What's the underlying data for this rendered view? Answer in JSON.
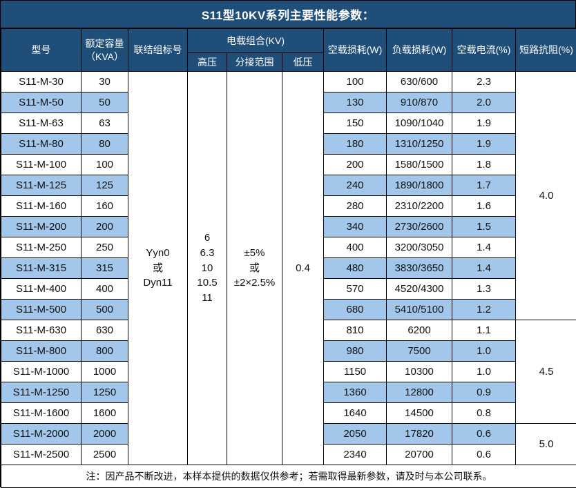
{
  "title": "S11型10KV系列主要性能参数：",
  "colors": {
    "header_blue": "#1F4E79",
    "row_alt_blue": "#A3C7EA",
    "border": "#000000",
    "header_text": "#FFFFFF",
    "body_text": "#111111"
  },
  "header": {
    "model": "型号",
    "capacity": "额定容量\n（KVA）",
    "joint": "联结组标号",
    "voltage_group": "电载组合(KV)",
    "hv": "高压",
    "tap": "分接范围",
    "lv": "低压",
    "no_load_loss": "空载损耗(W)",
    "load_loss": "负载损耗(W)",
    "no_load_current": "空载电流(%)",
    "impedance": "短路抗阻(%)"
  },
  "merged": {
    "joint": "Yyn0\n或\nDyn11",
    "hv": "6\n6.3\n10\n10.5\n11",
    "tap": "±5%\n或\n±2×2.5%",
    "lv": "0.4"
  },
  "rows": [
    {
      "model": "S11-M-30",
      "capacity": "30",
      "no_load_loss": "100",
      "load_loss": "630/600",
      "no_load_current": "2.3"
    },
    {
      "model": "S11-M-50",
      "capacity": "50",
      "no_load_loss": "130",
      "load_loss": "910/870",
      "no_load_current": "2.0"
    },
    {
      "model": "S11-M-63",
      "capacity": "63",
      "no_load_loss": "150",
      "load_loss": "1090/1040",
      "no_load_current": "1.9"
    },
    {
      "model": "S11-M-80",
      "capacity": "80",
      "no_load_loss": "180",
      "load_loss": "1310/1250",
      "no_load_current": "1.9"
    },
    {
      "model": "S11-M-100",
      "capacity": "100",
      "no_load_loss": "200",
      "load_loss": "1580/1500",
      "no_load_current": "1.8"
    },
    {
      "model": "S11-M-125",
      "capacity": "125",
      "no_load_loss": "240",
      "load_loss": "1890/1800",
      "no_load_current": "1.7"
    },
    {
      "model": "S11-M-160",
      "capacity": "160",
      "no_load_loss": "280",
      "load_loss": "2310/2200",
      "no_load_current": "1.6"
    },
    {
      "model": "S11-M-200",
      "capacity": "200",
      "no_load_loss": "340",
      "load_loss": "2730/2600",
      "no_load_current": "1.5"
    },
    {
      "model": "S11-M-250",
      "capacity": "250",
      "no_load_loss": "400",
      "load_loss": "3200/3050",
      "no_load_current": "1.4"
    },
    {
      "model": "S11-M-315",
      "capacity": "315",
      "no_load_loss": "480",
      "load_loss": "3830/3650",
      "no_load_current": "1.4"
    },
    {
      "model": "S11-M-400",
      "capacity": "400",
      "no_load_loss": "570",
      "load_loss": "4520/4300",
      "no_load_current": "1.3"
    },
    {
      "model": "S11-M-500",
      "capacity": "500",
      "no_load_loss": "680",
      "load_loss": "5410/5100",
      "no_load_current": "1.2"
    },
    {
      "model": "S11-M-630",
      "capacity": "630",
      "no_load_loss": "810",
      "load_loss": "6200",
      "no_load_current": "1.1"
    },
    {
      "model": "S11-M-800",
      "capacity": "800",
      "no_load_loss": "980",
      "load_loss": "7500",
      "no_load_current": "1.0"
    },
    {
      "model": "S11-M-1000",
      "capacity": "1000",
      "no_load_loss": "1150",
      "load_loss": "10300",
      "no_load_current": "1.0"
    },
    {
      "model": "S11-M-1250",
      "capacity": "1250",
      "no_load_loss": "1360",
      "load_loss": "12800",
      "no_load_current": "0.9"
    },
    {
      "model": "S11-M-1600",
      "capacity": "1600",
      "no_load_loss": "1640",
      "load_loss": "14500",
      "no_load_current": "0.8"
    },
    {
      "model": "S11-M-2000",
      "capacity": "2000",
      "no_load_loss": "2050",
      "load_loss": "17820",
      "no_load_current": "0.6"
    },
    {
      "model": "S11-M-2500",
      "capacity": "2500",
      "no_load_loss": "2340",
      "load_loss": "20700",
      "no_load_current": "0.6"
    }
  ],
  "impedance_groups": [
    {
      "value": "4.0",
      "span": 12
    },
    {
      "value": "4.5",
      "span": 5
    },
    {
      "value": "5.0",
      "span": 2
    }
  ],
  "note": "注：因产品不断改进，本样本提供的数据仅供参考；若需取得最新参数，请及时与本公司联系。"
}
